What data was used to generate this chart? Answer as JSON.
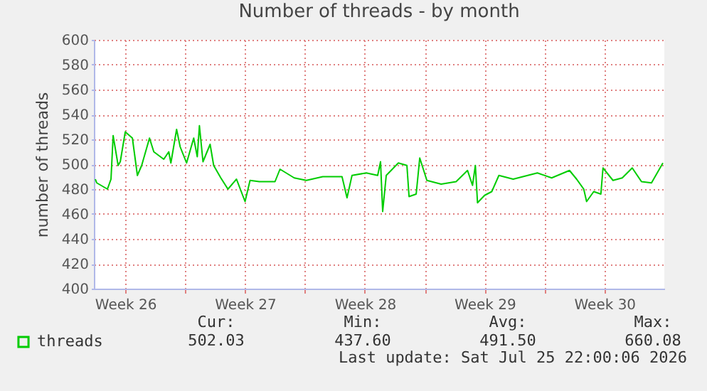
{
  "chart_data": {
    "type": "line",
    "title": "Number of threads - by month",
    "ylabel": "number of threads",
    "x": [
      "2026-06-22T18:00",
      "2026-06-22T20:00",
      "2026-06-23T11:00",
      "2026-06-23T16:00",
      "2026-06-23T19:00",
      "2026-06-24T02:00",
      "2026-06-24T05:00",
      "2026-06-24T12:00",
      "2026-06-24T22:00",
      "2026-06-25T05:00",
      "2026-06-25T11:00",
      "2026-06-25T22:00",
      "2026-06-26T04:00",
      "2026-06-26T18:00",
      "2026-06-27T01:00",
      "2026-06-27T04:00",
      "2026-06-27T12:00",
      "2026-06-27T17:00",
      "2026-06-28T02:00",
      "2026-06-28T12:00",
      "2026-06-28T17:00",
      "2026-06-28T20:00",
      "2026-06-29T01:00",
      "2026-06-29T11:00",
      "2026-06-29T16:00",
      "2026-06-30T02:00",
      "2026-06-30T12:00",
      "2026-07-01T00:00",
      "2026-07-01T12:00",
      "2026-07-01T19:00",
      "2026-07-02T08:00",
      "2026-07-03T06:00",
      "2026-07-03T13:00",
      "2026-07-04T09:00",
      "2026-07-05T02:00",
      "2026-07-06T01:00",
      "2026-07-07T04:00",
      "2026-07-07T11:00",
      "2026-07-07T18:00",
      "2026-07-08T14:00",
      "2026-07-09T06:00",
      "2026-07-09T10:00",
      "2026-07-09T13:00",
      "2026-07-09T18:00",
      "2026-07-10T11:00",
      "2026-07-10T23:00",
      "2026-07-11T02:00",
      "2026-07-11T12:00",
      "2026-07-11T17:00",
      "2026-07-12T03:00",
      "2026-07-12T23:00",
      "2026-07-13T20:00",
      "2026-07-14T12:00",
      "2026-07-14T19:00",
      "2026-07-14T23:00",
      "2026-07-15T02:00",
      "2026-07-15T12:00",
      "2026-07-15T22:00",
      "2026-07-16T08:00",
      "2026-07-17T04:00",
      "2026-07-18T14:00",
      "2026-07-19T10:00",
      "2026-07-20T11:00",
      "2026-07-20T21:00",
      "2026-07-21T07:00",
      "2026-07-21T11:00",
      "2026-07-21T21:00",
      "2026-07-22T07:00",
      "2026-07-22T10:00",
      "2026-07-23T00:00",
      "2026-07-23T13:00",
      "2026-07-24T03:00",
      "2026-07-24T16:00",
      "2026-07-25T06:00",
      "2026-07-25T16:00",
      "2026-07-25T22:00"
    ],
    "series": [
      {
        "name": "threads",
        "color": "#00cc00",
        "values": [
          488,
          485,
          480,
          488,
          523,
          499,
          502,
          526,
          521,
          491,
          499,
          521,
          510,
          504,
          510,
          501,
          528,
          514,
          501,
          521,
          506,
          531,
          502,
          516,
          499,
          489,
          480,
          488,
          470,
          487,
          486,
          486,
          496,
          489,
          487,
          490,
          490,
          473,
          491,
          493,
          491,
          502,
          462,
          491,
          501,
          499,
          474,
          476,
          505,
          487,
          484,
          486,
          495,
          483,
          499,
          469,
          475,
          478,
          491,
          488,
          493,
          489,
          495,
          488,
          480,
          470,
          478,
          476,
          497,
          487,
          489,
          497,
          486,
          485,
          495,
          501
        ]
      }
    ],
    "xlim": [
      "2026-06-22T16:00",
      "2026-07-26T00:00"
    ],
    "xticks": [
      {
        "value": "2026-06-24T12:00",
        "label": "Week 26"
      },
      {
        "value": "2026-06-28",
        "label": null
      },
      {
        "value": "2026-07-01T12:00",
        "label": "Week 27"
      },
      {
        "value": "2026-07-05",
        "label": null
      },
      {
        "value": "2026-07-08T12:00",
        "label": "Week 28"
      },
      {
        "value": "2026-07-12",
        "label": null
      },
      {
        "value": "2026-07-15T12:00",
        "label": "Week 29"
      },
      {
        "value": "2026-07-19",
        "label": null
      },
      {
        "value": "2026-07-22T12:00",
        "label": "Week 30"
      }
    ],
    "ylim": [
      400,
      600
    ],
    "yticks": [
      400,
      420,
      440,
      460,
      480,
      500,
      520,
      540,
      560,
      580,
      600
    ],
    "grid": true,
    "legend": "bottom left",
    "annotations": [
      "Cur:",
      "502.03",
      "Min:",
      "437.60",
      "Avg:",
      "491.50",
      "Max:",
      "660.08",
      "Last update: Sat Jul 25 22:00:06 2026"
    ]
  }
}
